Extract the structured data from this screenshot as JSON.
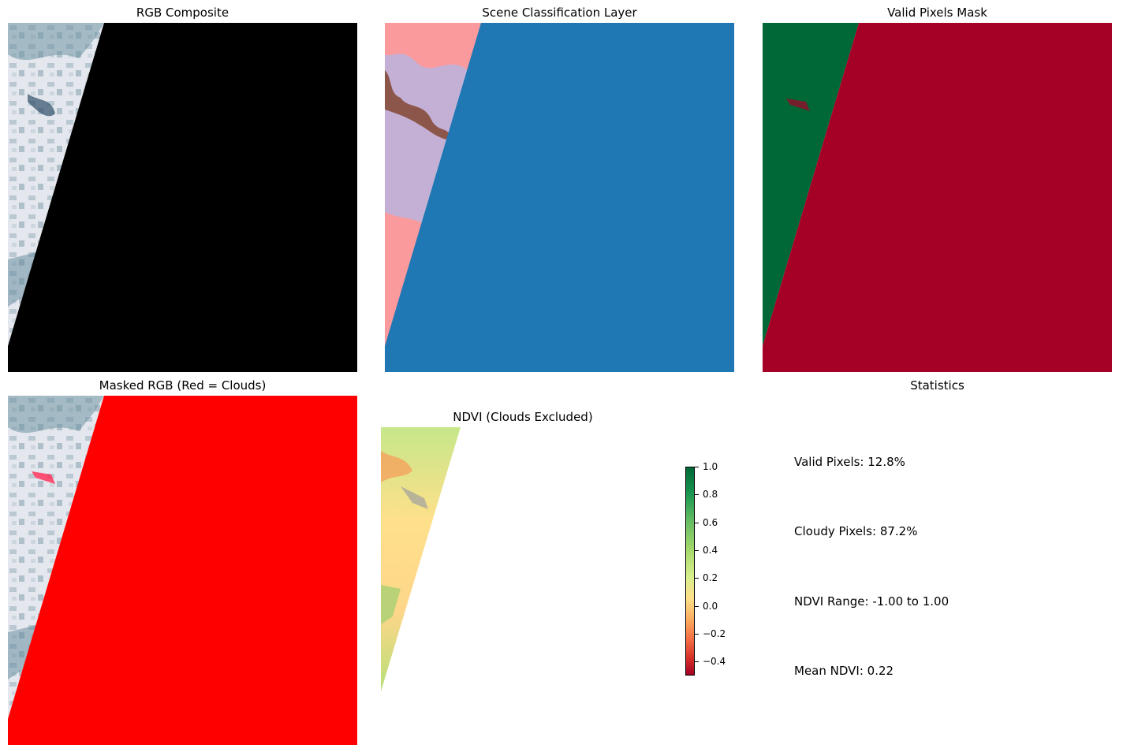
{
  "figure": {
    "panels": [
      {
        "key": "rgb",
        "title": "RGB Composite"
      },
      {
        "key": "scl",
        "title": "Scene Classification Layer"
      },
      {
        "key": "valid",
        "title": "Valid Pixels Mask"
      },
      {
        "key": "masked",
        "title": "Masked RGB (Red = Clouds)"
      },
      {
        "key": "ndvi",
        "title": "NDVI (Clouds Excluded)"
      },
      {
        "key": "stats",
        "title": "Statistics"
      }
    ]
  },
  "titles": {
    "rgb": "RGB Composite",
    "scl": "Scene Classification Layer",
    "valid": "Valid Pixels Mask",
    "masked": "Masked RGB (Red = Clouds)",
    "ndvi": "NDVI (Clouds Excluded)",
    "stats": "Statistics"
  },
  "statistics": {
    "valid_pixels": "Valid Pixels: 12.8%",
    "cloudy_pixels": "Cloudy Pixels: 87.2%",
    "ndvi_range": "NDVI Range: -1.00 to 1.00",
    "mean_ndvi": "Mean NDVI: 0.22"
  },
  "colors": {
    "no_data": "#000000",
    "scl_cloud": "#1f77b4",
    "scl_land": "#c5b0d5",
    "scl_pink": "#ff9896",
    "scl_brown": "#8c564b",
    "valid_true": "#006837",
    "valid_false": "#a50026",
    "cloud_mask": "#ff0000",
    "rgb_base": "#dfe4ea",
    "rgb_blue": "#6f93a3"
  },
  "chart_data": [
    {
      "type": "heatmap",
      "title": "RGB Composite",
      "description_values": {
        "valid_fraction": 0.128
      }
    },
    {
      "type": "heatmap",
      "title": "Scene Classification Layer",
      "classes_colors": [
        "#1f77b4",
        "#c5b0d5",
        "#ff9896",
        "#8c564b"
      ]
    },
    {
      "type": "heatmap",
      "title": "Valid Pixels Mask",
      "colors": {
        "valid": "#006837",
        "invalid": "#a50026"
      }
    },
    {
      "type": "heatmap",
      "title": "Masked RGB (Red = Clouds)"
    },
    {
      "type": "heatmap",
      "title": "NDVI (Clouds Excluded)",
      "colorbar": {
        "cmap": "RdYlGn",
        "min": -0.5,
        "max": 1.0,
        "ticks": [
          1.0,
          0.8,
          0.6,
          0.4,
          0.2,
          0.0,
          -0.2,
          -0.4
        ],
        "tick_labels": [
          "1.0",
          "0.8",
          "0.6",
          "0.4",
          "0.2",
          "0.0",
          "−0.2",
          "−0.4"
        ]
      }
    }
  ]
}
